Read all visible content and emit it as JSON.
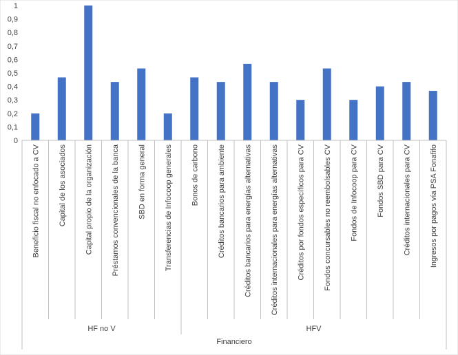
{
  "chart_data": {
    "type": "bar",
    "title": "",
    "xlabel": "",
    "ylabel": "",
    "ylim": [
      0,
      1
    ],
    "yticks": [
      "0",
      "0,1",
      "0,2",
      "0,3",
      "0,4",
      "0,5",
      "0,6",
      "0,7",
      "0,8",
      "0,9",
      "1"
    ],
    "grid": false,
    "legend": "none",
    "bar_color": "#4472c4",
    "categories": [
      "Beneficio fiscal no enfocado a CV",
      "Capital de los asociados",
      "Capital propio de la organización",
      "Préstamos convencionales de la banca",
      "SBD en forma general",
      "Transferencias de Infocoop generales",
      "Bonos de carbono",
      "Créditos bancarios para ambiente",
      "Créditos bancarios para energías alternativas",
      "Créditos internacionales para energías alternativas",
      "Créditos por fondos específicos para CV",
      "Fondos concursables no reembolsables CV",
      "Fondos de Infocoop para CV",
      "Fondos SBD para CV",
      "Créditos internacionales para CV",
      "Ingresos por pagos vía PSA Fonafifo"
    ],
    "values": [
      0.2,
      0.467,
      1.0,
      0.433,
      0.533,
      0.2,
      0.467,
      0.433,
      0.567,
      0.433,
      0.3,
      0.533,
      0.3,
      0.4,
      0.433,
      0.367
    ],
    "groups": [
      {
        "label": "HF no V",
        "count": 6
      },
      {
        "label": "HFV",
        "count": 10
      }
    ],
    "outer_group": "Financiero"
  }
}
